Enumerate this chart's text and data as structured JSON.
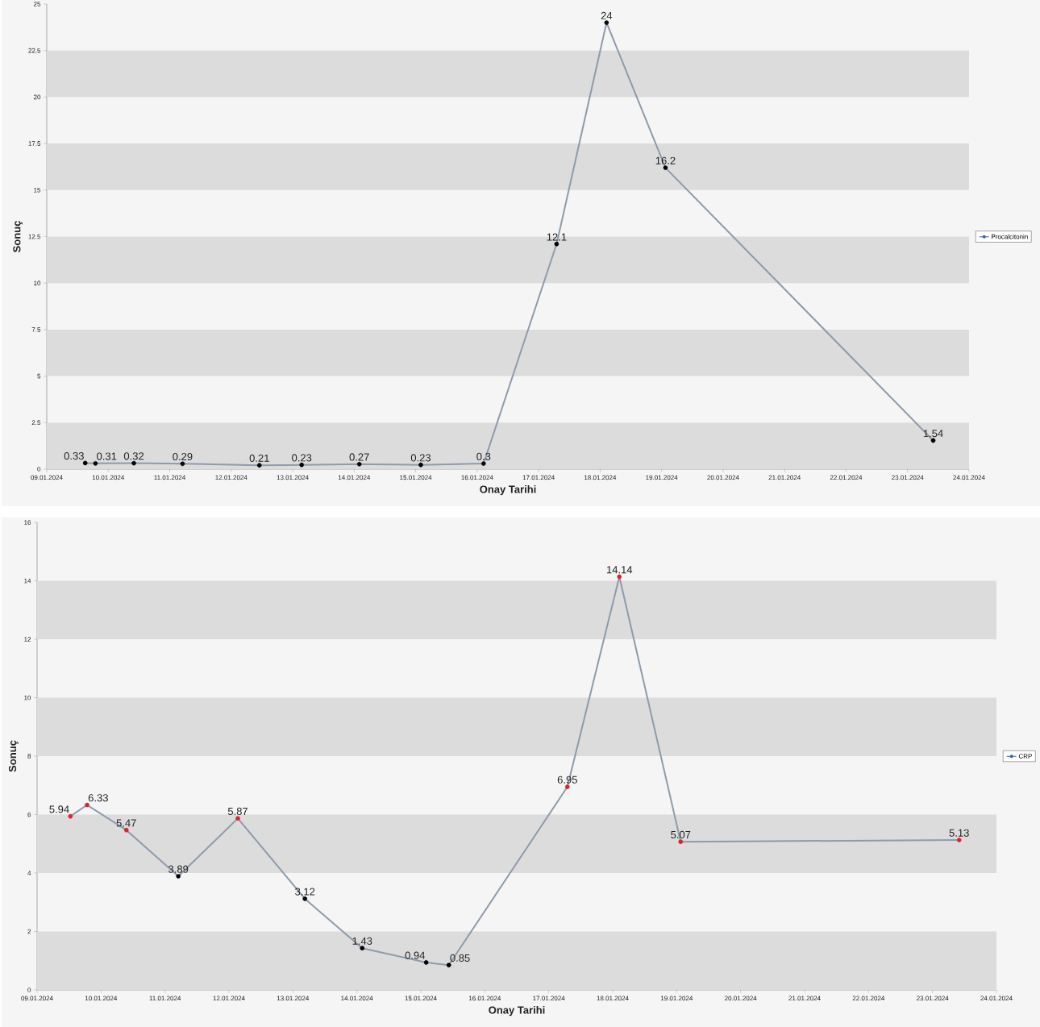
{
  "chart_data": [
    {
      "type": "line",
      "xlabel": "Onay Tarihi",
      "ylabel": "Sonuç",
      "legend": "right",
      "marker": "circle",
      "line_style": "solid",
      "data_labels": true,
      "grid": false,
      "xlim": [
        "2024-01-09",
        "2024-01-24"
      ],
      "xticks": [
        {
          "value": "2024-01-09",
          "label": "09.01.2024"
        },
        {
          "value": "2024-01-10",
          "label": "10.01.2024"
        },
        {
          "value": "2024-01-11",
          "label": "11.01.2024"
        },
        {
          "value": "2024-01-12",
          "label": "12.01.2024"
        },
        {
          "value": "2024-01-13",
          "label": "13.01.2024"
        },
        {
          "value": "2024-01-14",
          "label": "14.01.2024"
        },
        {
          "value": "2024-01-15",
          "label": "15.01.2024"
        },
        {
          "value": "2024-01-16",
          "label": "16.01.2024"
        },
        {
          "value": "2024-01-17",
          "label": "17.01.2024"
        },
        {
          "value": "2024-01-18",
          "label": "18.01.2024"
        },
        {
          "value": "2024-01-19",
          "label": "19.01.2024"
        },
        {
          "value": "2024-01-20",
          "label": "20.01.2024"
        },
        {
          "value": "2024-01-21",
          "label": "21.01.2024"
        },
        {
          "value": "2024-01-22",
          "label": "22.01.2024"
        },
        {
          "value": "2024-01-23",
          "label": "23.01.2024"
        },
        {
          "value": "2024-01-24",
          "label": "24.01.2024"
        }
      ],
      "ylim": [
        0,
        25
      ],
      "yticks": [
        0,
        2.5,
        5,
        7.5,
        10,
        12.5,
        15,
        17.5,
        20,
        22.5,
        25
      ],
      "bands": [
        {
          "axis": "y",
          "from": 0,
          "to": 2.5,
          "color": "#dcdcdc"
        },
        {
          "axis": "y",
          "from": 5,
          "to": 7.5,
          "color": "#dcdcdc"
        },
        {
          "axis": "y",
          "from": 10,
          "to": 12.5,
          "color": "#dcdcdc"
        },
        {
          "axis": "y",
          "from": 15,
          "to": 17.5,
          "color": "#dcdcdc"
        },
        {
          "axis": "y",
          "from": 20,
          "to": 22.5,
          "color": "#dcdcdc"
        }
      ],
      "series": [
        {
          "name": "Procalcitonin",
          "color": "#8d9bab",
          "x": [
            "2024-01-09T15:00",
            "2024-01-09T19:00",
            "2024-01-10T10:00",
            "2024-01-11T05:00",
            "2024-01-12T11:00",
            "2024-01-13T03:30",
            "2024-01-14T02:00",
            "2024-01-15T02:00",
            "2024-01-16T02:30",
            "2024-01-17T07:00",
            "2024-01-18T02:30",
            "2024-01-19T01:30",
            "2024-01-23T10:00"
          ],
          "values": [
            0.33,
            0.31,
            0.32,
            0.29,
            0.21,
            0.23,
            0.27,
            0.23,
            0.3,
            12.1,
            24,
            16.2,
            1.54
          ],
          "colors": [
            "#000000",
            "#000000",
            "#000000",
            "#000000",
            "#000000",
            "#000000",
            "#000000",
            "#000000",
            "#000000",
            "#000000",
            "#000000",
            "#000000",
            "#000000"
          ]
        }
      ]
    },
    {
      "type": "line",
      "xlabel": "Onay Tarihi",
      "ylabel": "Sonuç",
      "legend": "right",
      "marker": "circle",
      "line_style": "solid",
      "data_labels": true,
      "grid": false,
      "xlim": [
        "2024-01-09",
        "2024-01-24"
      ],
      "xticks": [
        {
          "value": "2024-01-09",
          "label": "09.01.2024"
        },
        {
          "value": "2024-01-10",
          "label": "10.01.2024"
        },
        {
          "value": "2024-01-11",
          "label": "11.01.2024"
        },
        {
          "value": "2024-01-12",
          "label": "12.01.2024"
        },
        {
          "value": "2024-01-13",
          "label": "13.01.2024"
        },
        {
          "value": "2024-01-14",
          "label": "14.01.2024"
        },
        {
          "value": "2024-01-15",
          "label": "15.01.2024"
        },
        {
          "value": "2024-01-16",
          "label": "16.01.2024"
        },
        {
          "value": "2024-01-17",
          "label": "17.01.2024"
        },
        {
          "value": "2024-01-18",
          "label": "18.01.2024"
        },
        {
          "value": "2024-01-19",
          "label": "19.01.2024"
        },
        {
          "value": "2024-01-20",
          "label": "20.01.2024"
        },
        {
          "value": "2024-01-21",
          "label": "21.01.2024"
        },
        {
          "value": "2024-01-22",
          "label": "22.01.2024"
        },
        {
          "value": "2024-01-23",
          "label": "23.01.2024"
        },
        {
          "value": "2024-01-24",
          "label": "24.01.2024"
        }
      ],
      "ylim": [
        0,
        16
      ],
      "yticks": [
        0,
        2,
        4,
        6,
        8,
        10,
        12,
        14,
        16
      ],
      "bands": [
        {
          "axis": "y",
          "from": 0,
          "to": 2,
          "color": "#dcdcdc"
        },
        {
          "axis": "y",
          "from": 4,
          "to": 6,
          "color": "#dcdcdc"
        },
        {
          "axis": "y",
          "from": 8,
          "to": 10,
          "color": "#dcdcdc"
        },
        {
          "axis": "y",
          "from": 12,
          "to": 14,
          "color": "#dcdcdc"
        }
      ],
      "series": [
        {
          "name": "CRP",
          "color": "#8d9bab",
          "x": [
            "2024-01-09T12:30",
            "2024-01-09T18:45",
            "2024-01-10T09:30",
            "2024-01-11T05:00",
            "2024-01-12T03:20",
            "2024-01-13T04:30",
            "2024-01-14T02:00",
            "2024-01-15T02:00",
            "2024-01-15T10:30",
            "2024-01-17T07:00",
            "2024-01-18T02:30",
            "2024-01-19T01:30",
            "2024-01-23T10:00"
          ],
          "values": [
            5.94,
            6.33,
            5.47,
            3.89,
            5.87,
            3.12,
            1.43,
            0.94,
            0.85,
            6.95,
            14.14,
            5.07,
            5.13
          ],
          "colors": [
            "#e0202a",
            "#e0202a",
            "#e0202a",
            "#000000",
            "#e0202a",
            "#000000",
            "#000000",
            "#000000",
            "#000000",
            "#e0202a",
            "#e0202a",
            "#e0202a",
            "#e0202a"
          ]
        }
      ]
    }
  ]
}
